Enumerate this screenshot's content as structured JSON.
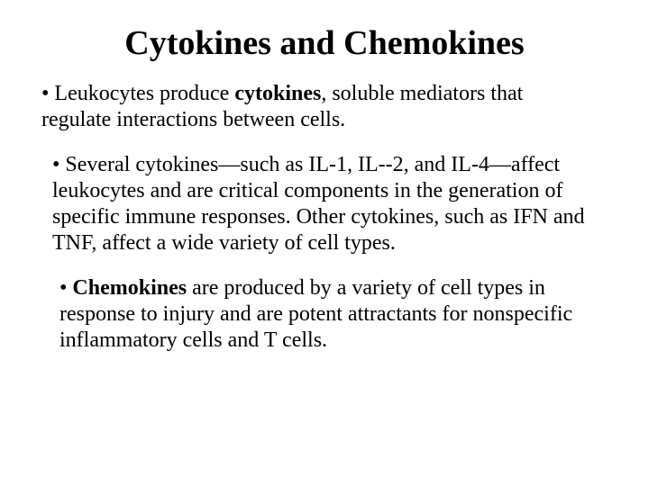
{
  "title": "Cytokines and Chemokines",
  "bullets": {
    "b1": {
      "pre": "• Leukocytes produce ",
      "bold": "cytokines",
      "post": ", soluble mediators that regulate interactions between cells."
    },
    "b2": {
      "text": "• Several cytokines—such as IL‑1, IL‑-2, and IL‑4—affect leukocytes and are critical components in the generation of specific immune responses. Other cytokines, such as IFN and TNF, affect a wide variety of cell types."
    },
    "b3": {
      "pre": "• ",
      "bold": "Chemokines",
      "post": " are produced by a variety of cell types in response to injury and are potent attractants for nonspecific inflammatory cells and T cells."
    }
  },
  "colors": {
    "background": "#ffffff",
    "text": "#000000"
  },
  "typography": {
    "font_family": "Times New Roman",
    "title_fontsize_pt": 28,
    "body_fontsize_pt": 18,
    "title_weight": "bold"
  }
}
